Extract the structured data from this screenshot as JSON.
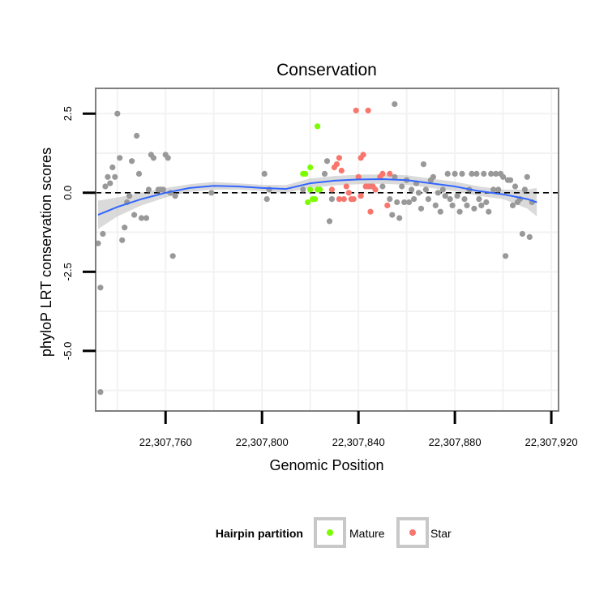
{
  "chart_data": {
    "type": "scatter",
    "title": "Conservation",
    "xlabel": "Genomic Position",
    "ylabel": "phyloP LRT conservation scores",
    "xlim": [
      22307731,
      22307923
    ],
    "ylim": [
      -6.9,
      3.3
    ],
    "x_ticks": [
      {
        "value": 22307760,
        "label": "22,307,760"
      },
      {
        "value": 22307800,
        "label": "22,307,800"
      },
      {
        "value": 22307840,
        "label": "22,307,840"
      },
      {
        "value": 22307880,
        "label": "22,307,880"
      },
      {
        "value": 22307920,
        "label": "22,307,920"
      }
    ],
    "y_ticks": [
      {
        "value": 2.5,
        "label": "2.5"
      },
      {
        "value": 0.0,
        "label": "0.0"
      },
      {
        "value": -2.5,
        "label": "-2.5"
      },
      {
        "value": -5.0,
        "label": "-5.0"
      }
    ],
    "reference_line": {
      "y": 0,
      "style": "dashed",
      "color": "#000000"
    },
    "grid": true,
    "legend": {
      "title": "Hairpin partition",
      "position": "bottom",
      "entries": [
        {
          "label": "Mature",
          "color": "#7CFC00"
        },
        {
          "label": "Star",
          "color": "#F8766D"
        }
      ]
    },
    "colors": {
      "Other": "#999999",
      "Mature": "#7CFC00",
      "Star": "#F8766D",
      "smooth": "#3366FF",
      "ribbon": "#bbbbbb"
    },
    "series": [
      {
        "name": "Other",
        "points": [
          [
            22307732,
            -1.6
          ],
          [
            22307733,
            -3.0
          ],
          [
            22307733,
            -6.3
          ],
          [
            22307734,
            -1.3
          ],
          [
            22307735,
            0.2
          ],
          [
            22307736,
            0.5
          ],
          [
            22307737,
            0.3
          ],
          [
            22307738,
            0.8
          ],
          [
            22307739,
            0.5
          ],
          [
            22307740,
            2.5
          ],
          [
            22307741,
            1.1
          ],
          [
            22307742,
            -1.5
          ],
          [
            22307743,
            -1.1
          ],
          [
            22307744,
            -0.3
          ],
          [
            22307745,
            -0.1
          ],
          [
            22307746,
            1.0
          ],
          [
            22307747,
            -0.7
          ],
          [
            22307748,
            1.8
          ],
          [
            22307749,
            0.6
          ],
          [
            22307750,
            -0.8
          ],
          [
            22307752,
            -0.8
          ],
          [
            22307753,
            0.1
          ],
          [
            22307754,
            1.2
          ],
          [
            22307755,
            1.1
          ],
          [
            22307757,
            0.1
          ],
          [
            22307758,
            0.1
          ],
          [
            22307759,
            0.1
          ],
          [
            22307760,
            1.2
          ],
          [
            22307761,
            1.1
          ],
          [
            22307762,
            0.0
          ],
          [
            22307763,
            -2.0
          ],
          [
            22307764,
            -0.1
          ],
          [
            22307779,
            0.0
          ],
          [
            22307801,
            0.6
          ],
          [
            22307802,
            -0.2
          ],
          [
            22307803,
            0.1
          ],
          [
            22307817,
            0.1
          ],
          [
            22307826,
            0.6
          ],
          [
            22307827,
            1.0
          ],
          [
            22307828,
            -0.9
          ],
          [
            22307829,
            -0.2
          ],
          [
            22307845,
            0.2
          ],
          [
            22307849,
            0.5
          ],
          [
            22307850,
            0.2
          ],
          [
            22307853,
            -0.2
          ],
          [
            22307854,
            -0.7
          ],
          [
            22307855,
            2.8
          ],
          [
            22307855,
            0.5
          ],
          [
            22307856,
            -0.3
          ],
          [
            22307857,
            -0.8
          ],
          [
            22307858,
            0.2
          ],
          [
            22307859,
            -0.3
          ],
          [
            22307860,
            0.4
          ],
          [
            22307861,
            -0.3
          ],
          [
            22307862,
            0.1
          ],
          [
            22307863,
            -0.2
          ],
          [
            22307864,
            0.3
          ],
          [
            22307865,
            0.0
          ],
          [
            22307866,
            -0.5
          ],
          [
            22307867,
            0.9
          ],
          [
            22307868,
            0.1
          ],
          [
            22307869,
            -0.2
          ],
          [
            22307870,
            0.4
          ],
          [
            22307871,
            0.5
          ],
          [
            22307872,
            -0.4
          ],
          [
            22307873,
            0.0
          ],
          [
            22307874,
            -0.6
          ],
          [
            22307875,
            0.1
          ],
          [
            22307876,
            -0.1
          ],
          [
            22307877,
            0.6
          ],
          [
            22307878,
            -0.2
          ],
          [
            22307879,
            -0.4
          ],
          [
            22307880,
            0.6
          ],
          [
            22307881,
            -0.1
          ],
          [
            22307882,
            -0.6
          ],
          [
            22307883,
            0.6
          ],
          [
            22307884,
            -0.2
          ],
          [
            22307885,
            -0.4
          ],
          [
            22307886,
            0.1
          ],
          [
            22307887,
            0.6
          ],
          [
            22307888,
            -0.5
          ],
          [
            22307889,
            0.6
          ],
          [
            22307890,
            -0.2
          ],
          [
            22307891,
            -0.4
          ],
          [
            22307892,
            0.6
          ],
          [
            22307893,
            -0.3
          ],
          [
            22307894,
            -0.6
          ],
          [
            22307895,
            0.6
          ],
          [
            22307896,
            0.1
          ],
          [
            22307897,
            0.6
          ],
          [
            22307898,
            0.1
          ],
          [
            22307899,
            0.6
          ],
          [
            22307900,
            0.5
          ],
          [
            22307901,
            -2.0
          ],
          [
            22307902,
            0.4
          ],
          [
            22307903,
            0.4
          ],
          [
            22307904,
            -0.4
          ],
          [
            22307905,
            0.2
          ],
          [
            22307906,
            -0.3
          ],
          [
            22307907,
            -0.2
          ],
          [
            22307908,
            -1.3
          ],
          [
            22307909,
            0.1
          ],
          [
            22307910,
            0.5
          ],
          [
            22307911,
            -1.4
          ],
          [
            22307912,
            -0.3
          ]
        ]
      },
      {
        "name": "Mature",
        "points": [
          [
            22307817,
            0.6
          ],
          [
            22307818,
            0.6
          ],
          [
            22307819,
            -0.3
          ],
          [
            22307820,
            0.8
          ],
          [
            22307820,
            0.1
          ],
          [
            22307821,
            -0.2
          ],
          [
            22307822,
            -0.2
          ],
          [
            22307823,
            2.1
          ],
          [
            22307823,
            0.1
          ],
          [
            22307824,
            0.1
          ]
        ]
      },
      {
        "name": "Star",
        "points": [
          [
            22307829,
            0.1
          ],
          [
            22307830,
            0.8
          ],
          [
            22307831,
            0.9
          ],
          [
            22307832,
            1.1
          ],
          [
            22307832,
            -0.2
          ],
          [
            22307833,
            0.7
          ],
          [
            22307834,
            -0.2
          ],
          [
            22307835,
            0.2
          ],
          [
            22307836,
            0.0
          ],
          [
            22307837,
            -0.2
          ],
          [
            22307838,
            -0.2
          ],
          [
            22307839,
            2.6
          ],
          [
            22307840,
            0.5
          ],
          [
            22307841,
            -0.1
          ],
          [
            22307841,
            1.1
          ],
          [
            22307842,
            1.2
          ],
          [
            22307843,
            0.2
          ],
          [
            22307844,
            0.2
          ],
          [
            22307844,
            2.6
          ],
          [
            22307845,
            -0.6
          ],
          [
            22307846,
            0.2
          ],
          [
            22307847,
            0.1
          ],
          [
            22307849,
            0.5
          ],
          [
            22307850,
            0.6
          ],
          [
            22307852,
            -0.4
          ],
          [
            22307853,
            0.6
          ]
        ]
      }
    ],
    "smooth": {
      "method": "loess",
      "x": [
        22307732,
        22307740,
        22307750,
        22307760,
        22307770,
        22307780,
        22307790,
        22307800,
        22307810,
        22307820,
        22307830,
        22307840,
        22307850,
        22307860,
        22307870,
        22307880,
        22307890,
        22307900,
        22307910,
        22307914
      ],
      "y": [
        -0.7,
        -0.45,
        -0.2,
        0.0,
        0.15,
        0.22,
        0.2,
        0.15,
        0.12,
        0.3,
        0.38,
        0.42,
        0.43,
        0.4,
        0.3,
        0.2,
        0.05,
        -0.05,
        -0.2,
        -0.3
      ],
      "ci_halfwidth": [
        0.45,
        0.3,
        0.2,
        0.15,
        0.12,
        0.12,
        0.1,
        0.1,
        0.12,
        0.15,
        0.15,
        0.15,
        0.15,
        0.15,
        0.15,
        0.15,
        0.15,
        0.15,
        0.3,
        0.45
      ]
    }
  }
}
